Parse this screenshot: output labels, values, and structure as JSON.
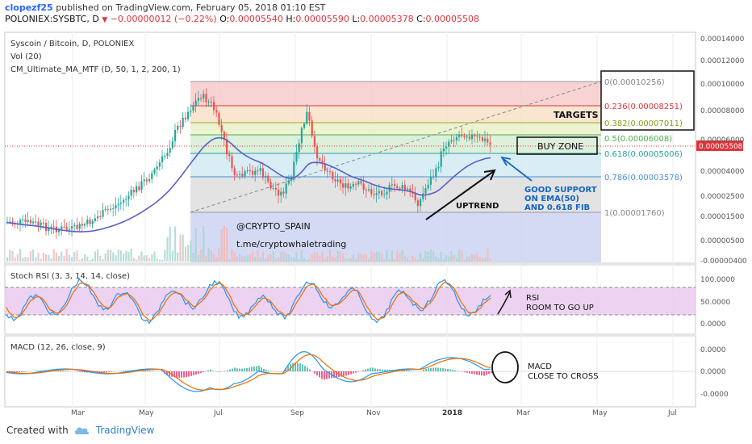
{
  "header": {
    "user": "clopezf25",
    "published_text": "published on TradingView.com, February 05, 2018 01:10 EST",
    "symbol": "POLONIEX:SYSBTC, D",
    "last": "0.00005508",
    "change": "−0.00000012 (−0.22%)",
    "o_label": "O:",
    "o_val": "0.00005540",
    "h_label": "H:",
    "h_val": "0.00005590",
    "l_label": "L:",
    "l_val": "0.00005378",
    "c_label": "C:",
    "c_val": "0.00005508"
  },
  "legend": {
    "main": "Syscoin / Bitcoin, D, POLONIEX",
    "vol": "Vol (20)",
    "ma": "CM_Ultimate_MA_MTF (D, 50, 1, 2, 200, 1)"
  },
  "price_axis": [
    "0.00014000",
    "0.00012000",
    "0.00010000",
    "0.00008000",
    "0.00006000",
    "0.00004000",
    "0.00002500",
    "0.00001500",
    "0.00000500",
    "-0.00000400"
  ],
  "current_price_tag": "0.00005508",
  "fib": [
    {
      "label": "0(0.00010256)",
      "color": "#888888"
    },
    {
      "label": "0.236(0.00008251)",
      "color": "#e0343a"
    },
    {
      "label": "0.382(0.00007011)",
      "color": "#8a9a1a"
    },
    {
      "label": "0.5(0.00006008)",
      "color": "#4caf50"
    },
    {
      "label": "0.618(0.00005006)",
      "color": "#26a69a"
    },
    {
      "label": "0.786(0.00003578)",
      "color": "#4a90d9"
    },
    {
      "label": "1(0.00001760)",
      "color": "#888888"
    }
  ],
  "annotations": {
    "targets": "TARGETS",
    "buy_zone": "BUY ZONE",
    "support_1": "GOOD SUPPORT",
    "support_2": "ON EMA(50)",
    "support_3": "AND 0.618 FIB",
    "uptrend": "UPTREND",
    "handle": "@CRYPTO_SPAIN",
    "channel": "t.me/cryptowhaletrading",
    "rsi_1": "RSI",
    "rsi_2": "ROOM TO GO UP",
    "macd_1": "MACD",
    "macd_2": "CLOSE TO CROSS"
  },
  "stoch": {
    "title": "Stoch RSI (3, 3, 14, 14, close)",
    "axis": [
      "100.0000",
      "50.0000",
      "0.0000"
    ]
  },
  "macd": {
    "title": "MACD (12, 26, close, 9)",
    "axis": [
      "0.0000",
      "0.0000",
      "-0.0000"
    ]
  },
  "time_axis": [
    "Mar",
    "May",
    "Jul",
    "Sep",
    "Nov",
    "2018",
    "Mar",
    "May",
    "Jul"
  ],
  "footer": {
    "created": "Created with",
    "brand": "TradingView"
  },
  "colors": {
    "up": "#26a69a",
    "down": "#ef5350",
    "ema": "#5b5fc7",
    "stoch_k": "#2196f3",
    "stoch_d": "#ef6c00",
    "stoch_band": "#e1bee7"
  }
}
